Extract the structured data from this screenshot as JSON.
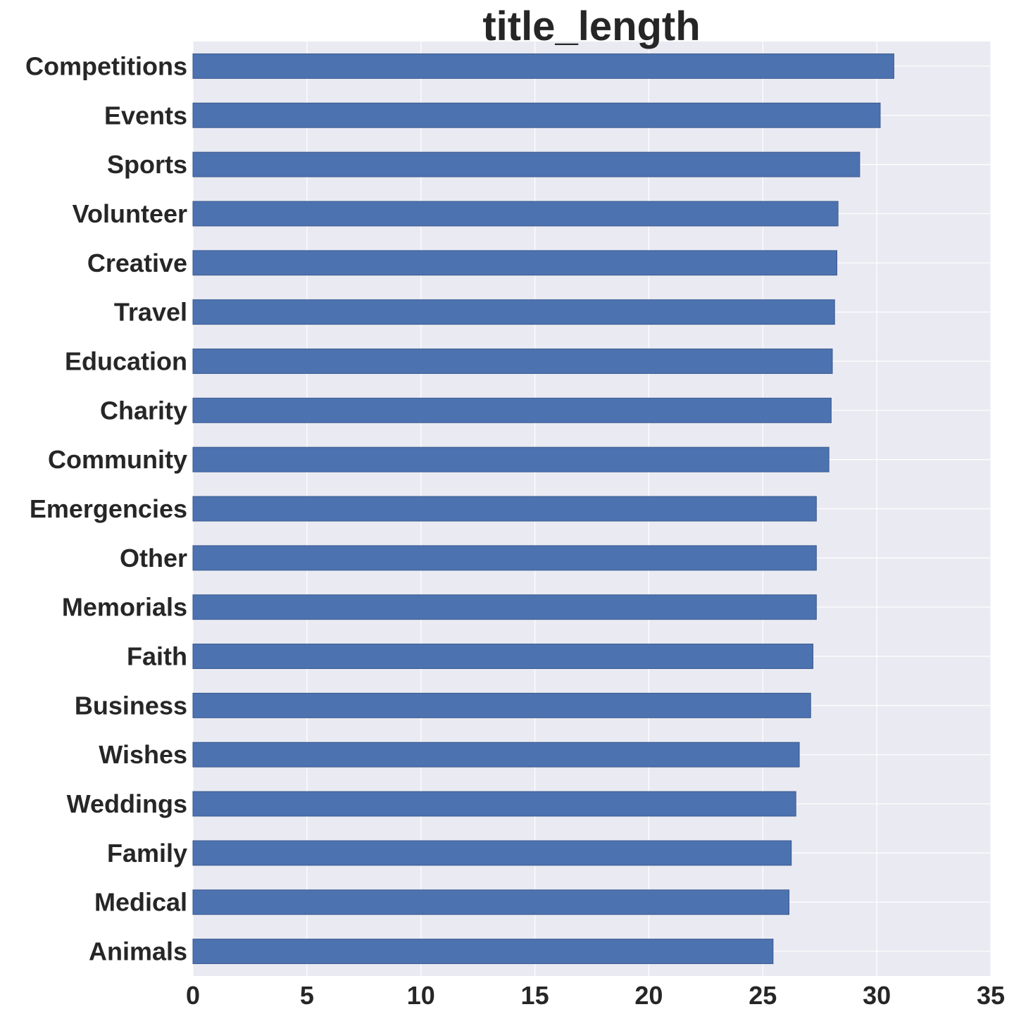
{
  "chart_data": {
    "type": "bar",
    "orientation": "horizontal",
    "title": "title_length",
    "xlabel": "",
    "ylabel": "",
    "categories": [
      "Competitions",
      "Events",
      "Sports",
      "Volunteer",
      "Creative",
      "Travel",
      "Education",
      "Charity",
      "Community",
      "Emergencies",
      "Other",
      "Memorials",
      "Faith",
      "Business",
      "Wishes",
      "Weddings",
      "Family",
      "Medical",
      "Animals"
    ],
    "values": [
      30.75,
      30.15,
      29.25,
      28.3,
      28.25,
      28.15,
      28.05,
      28.0,
      27.9,
      27.35,
      27.35,
      27.35,
      27.2,
      27.1,
      26.6,
      26.45,
      26.25,
      26.15,
      25.45
    ],
    "xlim": [
      0,
      35
    ],
    "xticks": [
      "0",
      "5",
      "10",
      "15",
      "20",
      "25",
      "30",
      "35"
    ],
    "grid": true,
    "colors": {
      "bar": "#4c72b0",
      "bar_edge": "#3b5a8f",
      "background": "#eaeaf2",
      "grid": "#ffffff",
      "text": "#262626"
    }
  }
}
